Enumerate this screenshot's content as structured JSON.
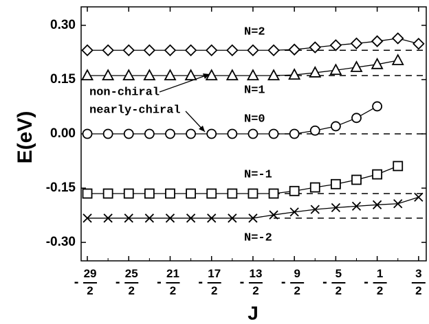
{
  "chart_data": {
    "type": "line",
    "y_label": "E(eV)",
    "x_label": "J",
    "x": [
      -14.5,
      -13.5,
      -12.5,
      -11.5,
      -10.5,
      -9.5,
      -8.5,
      -7.5,
      -6.5,
      -5.5,
      -4.5,
      -3.5,
      -2.5,
      -1.5,
      -0.5,
      0.5,
      1.5
    ],
    "series": [
      {
        "name": "N=2",
        "marker": "diamond",
        "color": "#000000",
        "values": [
          0.231,
          0.231,
          0.231,
          0.231,
          0.231,
          0.231,
          0.231,
          0.231,
          0.231,
          0.231,
          0.233,
          0.239,
          0.245,
          0.25,
          0.256,
          0.264,
          0.249
        ]
      },
      {
        "name": "N=1",
        "marker": "triangle",
        "color": "#000000",
        "values": [
          0.161,
          0.161,
          0.161,
          0.161,
          0.161,
          0.161,
          0.161,
          0.161,
          0.161,
          0.161,
          0.163,
          0.169,
          0.176,
          0.184,
          0.192,
          0.203,
          null
        ]
      },
      {
        "name": "N=0",
        "marker": "circle",
        "color": "#000000",
        "values": [
          0,
          0,
          0,
          0,
          0,
          0,
          0,
          0,
          0,
          0,
          0,
          0.009,
          0.021,
          0.044,
          0.076,
          null,
          null
        ]
      },
      {
        "name": "N=-1",
        "marker": "square",
        "color": "#000000",
        "values": [
          -0.165,
          -0.165,
          -0.165,
          -0.165,
          -0.165,
          -0.165,
          -0.165,
          -0.165,
          -0.165,
          -0.165,
          -0.158,
          -0.148,
          -0.139,
          -0.127,
          -0.112,
          -0.089,
          null
        ]
      },
      {
        "name": "N=-2",
        "marker": "cross",
        "color": "#000000",
        "values": [
          -0.233,
          -0.233,
          -0.233,
          -0.233,
          -0.233,
          -0.233,
          -0.233,
          -0.233,
          -0.233,
          -0.224,
          -0.216,
          -0.209,
          -0.204,
          -0.2,
          -0.196,
          -0.193,
          -0.175
        ]
      }
    ],
    "dashed_lines": [
      {
        "y": 0.231,
        "x_start": -5.5
      },
      {
        "y": 0.161,
        "x_start": -5.5
      },
      {
        "y": 0,
        "x_start": -5.5
      },
      {
        "y": -0.165,
        "x_start": -5.5
      },
      {
        "y": -0.233,
        "x_start": -5.5
      }
    ],
    "annotations": [
      "non-chiral",
      "nearly-chiral"
    ],
    "xlim": [
      -14.8,
      1.87
    ],
    "ylim": [
      -0.351,
      0.351
    ],
    "xticks": [
      {
        "value": -14.5,
        "label": "-29/2"
      },
      {
        "value": -12.5,
        "label": "-25/2"
      },
      {
        "value": -10.5,
        "label": "-21/2"
      },
      {
        "value": -8.5,
        "label": "-17/2"
      },
      {
        "value": -6.5,
        "label": "-13/2"
      },
      {
        "value": -4.5,
        "label": "-9/2"
      },
      {
        "value": -2.5,
        "label": "-5/2"
      },
      {
        "value": -0.5,
        "label": "-1/2"
      },
      {
        "value": 1.5,
        "label": "3/2"
      }
    ],
    "yticks": [
      {
        "value": 0.3,
        "label": "0.30"
      },
      {
        "value": 0.15,
        "label": "0.15"
      },
      {
        "value": 0,
        "label": "0.00"
      },
      {
        "value": -0.15,
        "label": "-0.15"
      },
      {
        "value": -0.3,
        "label": "-0.30"
      }
    ]
  }
}
